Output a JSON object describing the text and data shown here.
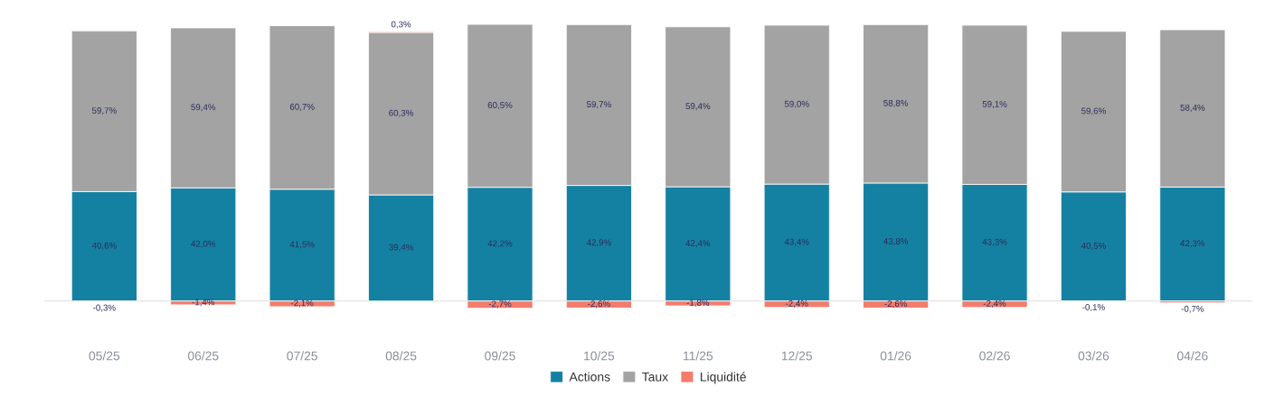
{
  "chart_data": {
    "type": "bar",
    "stacked": true,
    "categories": [
      "05/25",
      "06/25",
      "07/25",
      "08/25",
      "09/25",
      "10/25",
      "11/25",
      "12/25",
      "01/26",
      "02/26",
      "03/26",
      "04/26"
    ],
    "series": [
      {
        "name": "Actions",
        "color": "#1581a2",
        "values": [
          40.6,
          42.0,
          41.5,
          39.4,
          42.2,
          42.9,
          42.4,
          43.4,
          43.8,
          43.3,
          40.5,
          42.3
        ],
        "value_labels": [
          "40,6%",
          "42,0%",
          "41,5%",
          "39,4%",
          "42,2%",
          "42,9%",
          "42,4%",
          "43,4%",
          "43,8%",
          "43,3%",
          "40,5%",
          "42,3%"
        ]
      },
      {
        "name": "Taux",
        "color": "#a3a3a3",
        "values": [
          59.7,
          59.4,
          60.7,
          60.3,
          60.5,
          59.7,
          59.4,
          59.0,
          58.8,
          59.1,
          59.6,
          58.4
        ],
        "value_labels": [
          "59,7%",
          "59,4%",
          "60,7%",
          "60,3%",
          "60,5%",
          "59,7%",
          "59,4%",
          "59,0%",
          "58,8%",
          "59,1%",
          "59,6%",
          "58,4%"
        ]
      },
      {
        "name": "Liquidité",
        "color": "#f47c6c",
        "values": [
          -0.3,
          -1.4,
          -2.1,
          0.3,
          -2.7,
          -2.6,
          -1.8,
          -2.4,
          -2.6,
          -2.4,
          -0.1,
          -0.7
        ],
        "value_labels": [
          "-0,3%",
          "-1,4%",
          "-2,1%",
          "0,3%",
          "-2,7%",
          "-2,6%",
          "-1,8%",
          "-2,4%",
          "-2,6%",
          "-2,4%",
          "-0,1%",
          "-0,7%"
        ]
      }
    ],
    "tick_labels": "x",
    "grid": false,
    "legend": "bottom"
  }
}
